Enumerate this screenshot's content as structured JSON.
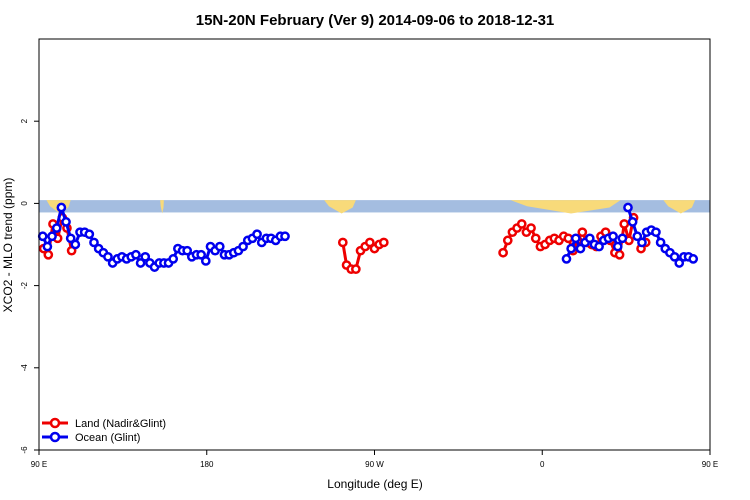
{
  "chart_data": {
    "type": "line",
    "title": "15N-20N February (Ver 9)   2014-09-06 to 2018-12-31",
    "xlabel": "Longitude (deg E)",
    "ylabel": "XCO2 - MLO trend (ppm)",
    "xlim": [
      90,
      450
    ],
    "ylim": [
      -6,
      4
    ],
    "x_ticks": [
      {
        "value": 90,
        "label": "90 E"
      },
      {
        "value": 180,
        "label": "180"
      },
      {
        "value": 270,
        "label": "90 W"
      },
      {
        "value": 360,
        "label": "0"
      },
      {
        "value": 450,
        "label": "90 E"
      },
      {
        "value": 540,
        "label": "180"
      }
    ],
    "y_ticks": [
      {
        "value": -6,
        "label": "-6"
      },
      {
        "value": -4,
        "label": "-4"
      },
      {
        "value": -2,
        "label": "-2"
      },
      {
        "value": 0,
        "label": "0"
      },
      {
        "value": 2,
        "label": "2"
      }
    ],
    "legend_position": "bottom-left",
    "colors": {
      "land": "#ee0000",
      "ocean": "#0000ee",
      "sea_band": "#a4bde0",
      "land_band": "#f8da7a"
    },
    "land_band_segments": [
      [
        94,
        107
      ],
      [
        155,
        157
      ],
      [
        243,
        260
      ],
      [
        343,
        402
      ],
      [
        425,
        442
      ]
    ],
    "series": [
      {
        "name": "Land (Nadir&Glint)",
        "color": "#ee0000",
        "segments": [
          [
            [
              92.5,
              -1.1
            ],
            [
              95,
              -1.25
            ],
            [
              97.5,
              -0.5
            ],
            [
              100,
              -0.85
            ],
            [
              102.5,
              -0.35
            ],
            [
              105,
              -0.6
            ],
            [
              107.5,
              -1.15
            ]
          ],
          [
            [
              253,
              -0.95
            ],
            [
              255,
              -1.5
            ],
            [
              257.5,
              -1.6
            ],
            [
              260,
              -1.6
            ],
            [
              262.5,
              -1.15
            ],
            [
              265,
              -1.05
            ],
            [
              267.5,
              -0.95
            ],
            [
              270,
              -1.1
            ],
            [
              272.5,
              -1.0
            ],
            [
              275,
              -0.95
            ]
          ],
          [
            [
              339,
              -1.2
            ],
            [
              341.5,
              -0.9
            ],
            [
              344,
              -0.7
            ],
            [
              346.5,
              -0.6
            ],
            [
              349,
              -0.5
            ],
            [
              351.5,
              -0.7
            ],
            [
              354,
              -0.6
            ],
            [
              356.5,
              -0.85
            ],
            [
              359,
              -1.05
            ],
            [
              361.5,
              -1.0
            ],
            [
              364,
              -0.9
            ],
            [
              366.5,
              -0.85
            ],
            [
              369,
              -0.9
            ],
            [
              371.5,
              -0.8
            ],
            [
              374,
              -0.85
            ],
            [
              376.5,
              -1.15
            ],
            [
              379,
              -0.9
            ],
            [
              381.5,
              -0.7
            ],
            [
              384,
              -0.95
            ],
            [
              386.5,
              -1.0
            ],
            [
              389,
              -1.05
            ],
            [
              391.5,
              -0.8
            ],
            [
              394,
              -0.7
            ],
            [
              396.5,
              -0.9
            ],
            [
              399,
              -1.2
            ],
            [
              401.5,
              -1.25
            ],
            [
              404,
              -0.5
            ],
            [
              406.5,
              -0.9
            ],
            [
              409,
              -0.35
            ]
          ],
          [
            [
              413,
              -1.1
            ],
            [
              415.5,
              -0.95
            ]
          ]
        ]
      },
      {
        "name": "Ocean (Glint)",
        "color": "#0000ee",
        "segments": [
          [
            [
              92,
              -0.8
            ],
            [
              94.5,
              -1.05
            ],
            [
              97,
              -0.8
            ],
            [
              99.5,
              -0.6
            ],
            [
              102,
              -0.1
            ],
            [
              104.5,
              -0.45
            ],
            [
              107,
              -0.85
            ],
            [
              109.5,
              -1.0
            ],
            [
              112,
              -0.7
            ],
            [
              114.5,
              -0.7
            ],
            [
              117,
              -0.75
            ],
            [
              119.5,
              -0.95
            ],
            [
              122,
              -1.1
            ],
            [
              124.5,
              -1.2
            ],
            [
              127,
              -1.3
            ],
            [
              129.5,
              -1.45
            ],
            [
              132,
              -1.35
            ],
            [
              134.5,
              -1.3
            ],
            [
              137,
              -1.35
            ],
            [
              139.5,
              -1.3
            ],
            [
              142,
              -1.25
            ],
            [
              144.5,
              -1.45
            ],
            [
              147,
              -1.3
            ],
            [
              149.5,
              -1.45
            ],
            [
              152,
              -1.55
            ],
            [
              154.5,
              -1.45
            ],
            [
              157,
              -1.45
            ],
            [
              159.5,
              -1.45
            ],
            [
              162,
              -1.35
            ],
            [
              164.5,
              -1.1
            ],
            [
              167,
              -1.15
            ],
            [
              169.5,
              -1.15
            ],
            [
              172,
              -1.3
            ],
            [
              174.5,
              -1.25
            ],
            [
              177,
              -1.25
            ],
            [
              179.5,
              -1.4
            ],
            [
              182,
              -1.05
            ],
            [
              184.5,
              -1.15
            ],
            [
              187,
              -1.05
            ],
            [
              189.5,
              -1.25
            ],
            [
              192,
              -1.25
            ],
            [
              194.5,
              -1.2
            ],
            [
              197,
              -1.15
            ],
            [
              199.5,
              -1.05
            ],
            [
              202,
              -0.9
            ],
            [
              204.5,
              -0.85
            ],
            [
              207,
              -0.75
            ],
            [
              209.5,
              -0.95
            ],
            [
              212,
              -0.85
            ],
            [
              214.5,
              -0.85
            ],
            [
              217,
              -0.9
            ],
            [
              219.5,
              -0.8
            ],
            [
              222,
              -0.8
            ]
          ],
          [
            [
              373,
              -1.35
            ],
            [
              375.5,
              -1.1
            ],
            [
              378,
              -0.85
            ],
            [
              380.5,
              -1.1
            ],
            [
              383,
              -0.95
            ],
            [
              385.5,
              -0.85
            ],
            [
              388,
              -1.0
            ],
            [
              390.5,
              -1.05
            ],
            [
              393,
              -0.9
            ],
            [
              395.5,
              -0.85
            ],
            [
              398,
              -0.8
            ],
            [
              400.5,
              -1.05
            ],
            [
              403,
              -0.85
            ]
          ],
          [
            [
              406,
              -0.1
            ],
            [
              408.5,
              -0.45
            ],
            [
              411,
              -0.8
            ],
            [
              413.5,
              -0.95
            ],
            [
              416,
              -0.7
            ],
            [
              418.5,
              -0.65
            ],
            [
              421,
              -0.7
            ],
            [
              423.5,
              -0.95
            ],
            [
              426,
              -1.1
            ],
            [
              428.5,
              -1.2
            ],
            [
              431,
              -1.3
            ],
            [
              433.5,
              -1.45
            ],
            [
              436,
              -1.3
            ],
            [
              438.5,
              -1.3
            ],
            [
              441,
              -1.35
            ]
          ]
        ]
      }
    ]
  }
}
